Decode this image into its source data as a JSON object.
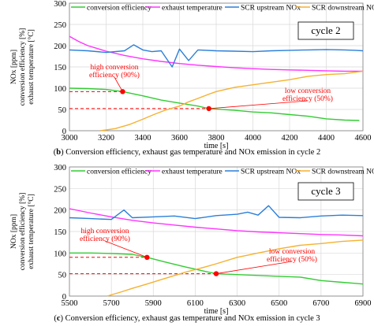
{
  "colors": {
    "efficiency": "#33cc33",
    "exhaust": "#ff33ff",
    "upstream": "#2b7fd9",
    "downstream": "#f5b130",
    "marker": "#ff0000",
    "guide": "#ff0000"
  },
  "captions": [
    {
      "tag": "b",
      "text": "Conversion efficiency, exhaust gas temperature and NOx emission in cycle 2"
    },
    {
      "tag": "c",
      "text": "Conversion efficiency, exhaust gas temperature and NOx emission in cycle 3"
    }
  ],
  "chart_data": [
    {
      "type": "line",
      "cycle_label": "cycle 2",
      "xlabel": "time [s]",
      "ylabel_lines": [
        "NOx [ppm]",
        "conversion efficiency [%]",
        "exhaust temperature [°C]"
      ],
      "xlim": [
        3000,
        4600
      ],
      "ylim": [
        0,
        300
      ],
      "xticks": [
        3000,
        3200,
        3400,
        3600,
        3800,
        4000,
        4200,
        4400,
        4600
      ],
      "yticks": [
        0,
        50,
        100,
        150,
        200,
        250,
        300
      ],
      "grid": true,
      "legend": "top",
      "series": [
        {
          "name": "conversion efficiency",
          "key": "efficiency",
          "x": [
            3000,
            3100,
            3200,
            3290,
            3400,
            3500,
            3600,
            3700,
            3760,
            3900,
            4000,
            4100,
            4200,
            4300,
            4400,
            4500,
            4580
          ],
          "y": [
            100,
            99,
            97,
            92,
            82,
            72,
            65,
            58,
            52,
            48,
            44,
            42,
            38,
            34,
            28,
            25,
            24
          ]
        },
        {
          "name": "exhaust temperature",
          "key": "exhaust",
          "x": [
            3000,
            3050,
            3100,
            3200,
            3300,
            3400,
            3500,
            3600,
            3700,
            3800,
            3900,
            4000,
            4100,
            4200,
            4300,
            4400,
            4500,
            4600
          ],
          "y": [
            222,
            210,
            200,
            187,
            177,
            169,
            163,
            158,
            154,
            151,
            148,
            146,
            144,
            143,
            142,
            141,
            140,
            140
          ]
        },
        {
          "name": "SCR upstream NOx",
          "key": "upstream",
          "x": [
            3000,
            3100,
            3200,
            3300,
            3350,
            3400,
            3450,
            3500,
            3560,
            3600,
            3650,
            3700,
            3800,
            3900,
            4000,
            4100,
            4200,
            4300,
            4400,
            4500,
            4560,
            4600
          ],
          "y": [
            190,
            188,
            184,
            188,
            202,
            190,
            186,
            188,
            150,
            192,
            165,
            190,
            188,
            187,
            186,
            188,
            189,
            190,
            191,
            190,
            189,
            188
          ]
        },
        {
          "name": "SCR downstream NOx",
          "key": "downstream",
          "x": [
            3170,
            3250,
            3330,
            3400,
            3460,
            3520,
            3600,
            3650,
            3700,
            3760,
            3800,
            3900,
            4000,
            4100,
            4200,
            4300,
            4400,
            4500,
            4600
          ],
          "y": [
            0,
            5,
            15,
            27,
            38,
            48,
            58,
            68,
            76,
            86,
            92,
            102,
            108,
            114,
            120,
            128,
            132,
            134,
            140
          ]
        }
      ],
      "annotations": [
        {
          "text": "high conversion\nefficiency (90%)",
          "x": 3290,
          "y": 92
        },
        {
          "text": "low conversion\nefficiency (50%)",
          "x": 3760,
          "y": 52
        }
      ]
    },
    {
      "type": "line",
      "cycle_label": "cycle 3",
      "xlabel": "time [s]",
      "ylabel_lines": [
        "NOx [ppm]",
        "conversion efficiency [%]",
        "exhaust temperature [°C]"
      ],
      "xlim": [
        5500,
        6900
      ],
      "ylim": [
        0,
        300
      ],
      "xticks": [
        5500,
        5700,
        5900,
        6100,
        6300,
        6500,
        6700,
        6900
      ],
      "yticks": [
        0,
        50,
        100,
        150,
        200,
        250,
        300
      ],
      "grid": true,
      "legend": "top",
      "series": [
        {
          "name": "conversion efficiency",
          "key": "efficiency",
          "x": [
            5500,
            5600,
            5700,
            5800,
            5870,
            5950,
            6050,
            6150,
            6200,
            6300,
            6400,
            6500,
            6600,
            6700,
            6800,
            6850,
            6900
          ],
          "y": [
            100,
            100,
            99,
            97,
            90,
            80,
            68,
            57,
            52,
            50,
            48,
            46,
            44,
            36,
            32,
            30,
            28
          ]
        },
        {
          "name": "exhaust temperature",
          "key": "exhaust",
          "x": [
            5500,
            5600,
            5700,
            5800,
            5900,
            6000,
            6100,
            6200,
            6300,
            6400,
            6500,
            6600,
            6700,
            6800,
            6900
          ],
          "y": [
            203,
            193,
            184,
            176,
            170,
            165,
            160,
            156,
            152,
            149,
            147,
            145,
            143,
            142,
            140
          ]
        },
        {
          "name": "SCR upstream NOx",
          "key": "upstream",
          "x": [
            5500,
            5600,
            5700,
            5760,
            5800,
            5900,
            6000,
            6100,
            6200,
            6300,
            6350,
            6400,
            6450,
            6500,
            6600,
            6700,
            6800,
            6900
          ],
          "y": [
            182,
            180,
            178,
            200,
            182,
            184,
            186,
            180,
            187,
            190,
            195,
            188,
            210,
            183,
            182,
            186,
            188,
            187
          ]
        },
        {
          "name": "SCR downstream NOx",
          "key": "downstream",
          "x": [
            5680,
            5750,
            5800,
            5870,
            5950,
            6050,
            6150,
            6200,
            6300,
            6400,
            6500,
            6600,
            6700,
            6800,
            6900
          ],
          "y": [
            0,
            10,
            18,
            28,
            40,
            55,
            68,
            75,
            90,
            100,
            110,
            118,
            122,
            127,
            130
          ]
        }
      ],
      "annotations": [
        {
          "text": "high conversion\nefficiency (90%)",
          "x": 5870,
          "y": 90
        },
        {
          "text": "low conversion\nefficiency (50%)",
          "x": 6200,
          "y": 52
        }
      ]
    }
  ]
}
